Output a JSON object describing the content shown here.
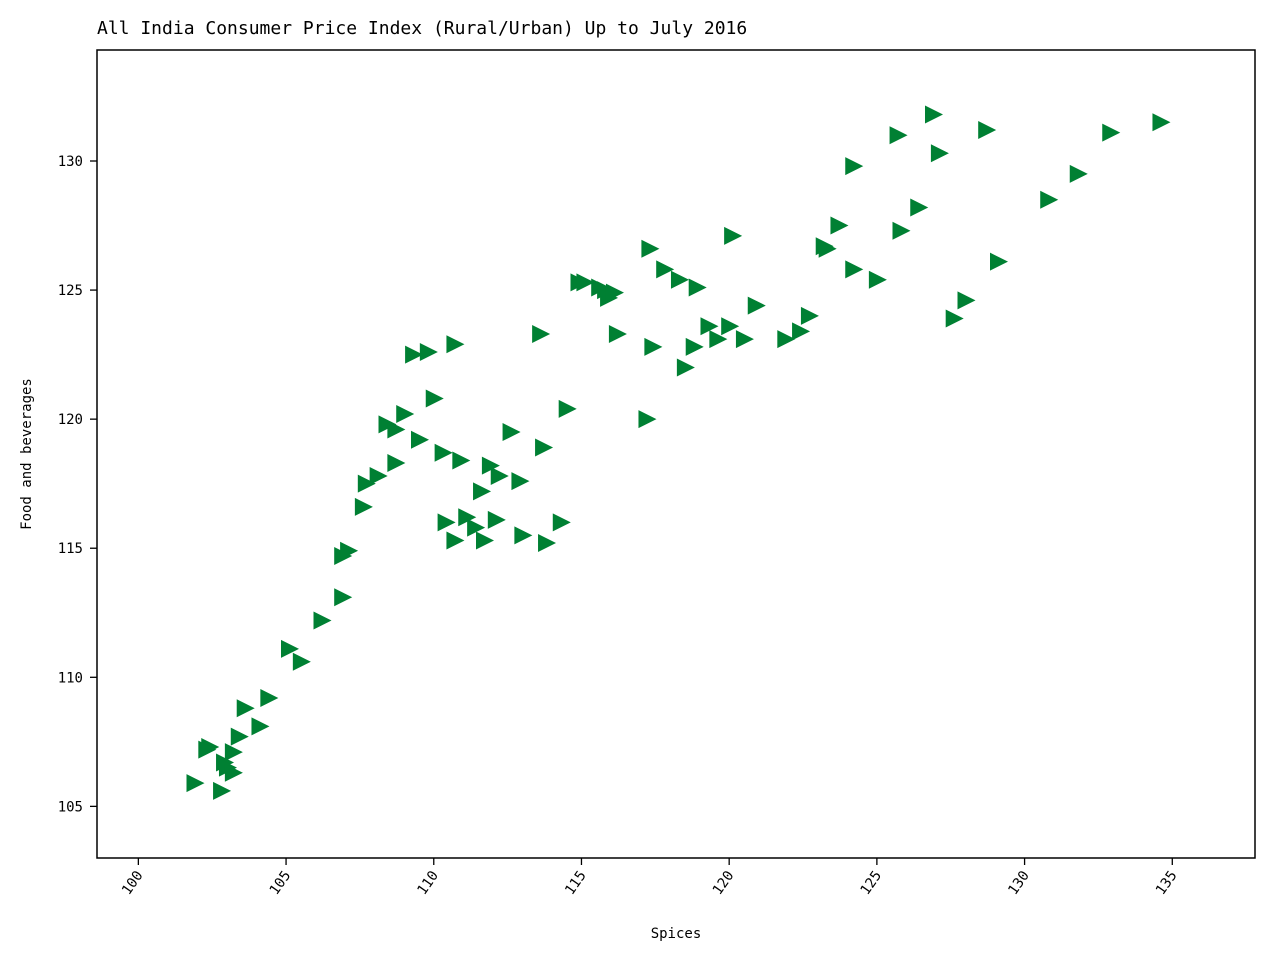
{
  "chart_data": {
    "type": "scatter",
    "title": "All India Consumer Price Index (Rural/Urban) Up to July 2016",
    "xlabel": "Spices",
    "ylabel": "Food and beverages",
    "xlim": [
      98.6,
      137.8
    ],
    "ylim": [
      103.0,
      134.3
    ],
    "xticks": [
      100,
      105,
      110,
      115,
      120,
      125,
      130,
      135
    ],
    "yticks": [
      105,
      110,
      115,
      120,
      125,
      130
    ],
    "grid": false,
    "marker": "triangle-right",
    "color": "#008033",
    "series": [
      {
        "points": [
          [
            101.9,
            105.9
          ],
          [
            102.8,
            105.6
          ],
          [
            102.4,
            107.3
          ],
          [
            102.3,
            107.2
          ],
          [
            102.9,
            106.7
          ],
          [
            103.0,
            106.5
          ],
          [
            103.2,
            106.3
          ],
          [
            103.2,
            107.1
          ],
          [
            103.4,
            107.7
          ],
          [
            103.6,
            108.8
          ],
          [
            104.1,
            108.1
          ],
          [
            104.4,
            109.2
          ],
          [
            105.1,
            111.1
          ],
          [
            105.5,
            110.6
          ],
          [
            106.2,
            112.2
          ],
          [
            106.9,
            113.1
          ],
          [
            106.9,
            114.7
          ],
          [
            107.1,
            114.9
          ],
          [
            107.6,
            116.6
          ],
          [
            107.7,
            117.5
          ],
          [
            108.1,
            117.8
          ],
          [
            108.4,
            119.8
          ],
          [
            108.7,
            118.3
          ],
          [
            108.7,
            119.6
          ],
          [
            109.0,
            120.2
          ],
          [
            109.3,
            122.5
          ],
          [
            109.5,
            119.2
          ],
          [
            109.8,
            122.6
          ],
          [
            110.0,
            120.8
          ],
          [
            110.3,
            118.7
          ],
          [
            110.4,
            116.0
          ],
          [
            110.7,
            115.3
          ],
          [
            110.7,
            122.9
          ],
          [
            110.9,
            118.4
          ],
          [
            111.1,
            116.2
          ],
          [
            111.4,
            115.8
          ],
          [
            111.6,
            117.2
          ],
          [
            111.7,
            115.3
          ],
          [
            111.9,
            118.2
          ],
          [
            112.1,
            116.1
          ],
          [
            112.2,
            117.8
          ],
          [
            112.6,
            119.5
          ],
          [
            112.9,
            117.6
          ],
          [
            113.0,
            115.5
          ],
          [
            113.6,
            123.3
          ],
          [
            113.7,
            118.9
          ],
          [
            113.8,
            115.2
          ],
          [
            114.3,
            116.0
          ],
          [
            114.5,
            120.4
          ],
          [
            114.9,
            125.3
          ],
          [
            115.1,
            125.3
          ],
          [
            115.6,
            125.1
          ],
          [
            115.8,
            125.0
          ],
          [
            115.9,
            124.7
          ],
          [
            116.1,
            124.9
          ],
          [
            116.2,
            123.3
          ],
          [
            117.3,
            126.6
          ],
          [
            117.2,
            120.0
          ],
          [
            117.4,
            122.8
          ],
          [
            117.8,
            125.8
          ],
          [
            118.3,
            125.4
          ],
          [
            118.5,
            122.0
          ],
          [
            118.8,
            122.8
          ],
          [
            118.9,
            125.1
          ],
          [
            119.3,
            123.6
          ],
          [
            119.6,
            123.1
          ],
          [
            120.0,
            123.6
          ],
          [
            120.1,
            127.1
          ],
          [
            120.5,
            123.1
          ],
          [
            120.9,
            124.4
          ],
          [
            121.9,
            123.1
          ],
          [
            122.4,
            123.4
          ],
          [
            122.7,
            124.0
          ],
          [
            123.2,
            126.7
          ],
          [
            123.3,
            126.6
          ],
          [
            123.7,
            127.5
          ],
          [
            124.2,
            125.8
          ],
          [
            124.2,
            129.8
          ],
          [
            125.0,
            125.4
          ],
          [
            125.7,
            131.0
          ],
          [
            125.8,
            127.3
          ],
          [
            126.4,
            128.2
          ],
          [
            126.9,
            131.8
          ],
          [
            127.1,
            130.3
          ],
          [
            127.6,
            123.9
          ],
          [
            128.0,
            124.6
          ],
          [
            128.7,
            131.2
          ],
          [
            129.1,
            126.1
          ],
          [
            130.8,
            128.5
          ],
          [
            131.8,
            129.5
          ],
          [
            132.9,
            131.1
          ],
          [
            134.6,
            131.5
          ]
        ]
      }
    ]
  }
}
